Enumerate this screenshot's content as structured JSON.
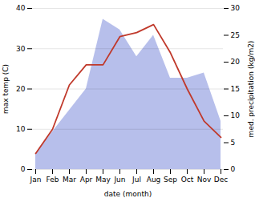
{
  "chart_data": {
    "type": "line",
    "categories": [
      "Jan",
      "Feb",
      "Mar",
      "Apr",
      "May",
      "Jun",
      "Jul",
      "Aug",
      "Sep",
      "Oct",
      "Nov",
      "Dec"
    ],
    "series": [
      {
        "type": "area",
        "color": "#aab4e8",
        "axis": "y2",
        "values": [
          3,
          7,
          11,
          15,
          28,
          26,
          21,
          25,
          17,
          17,
          18,
          9
        ]
      },
      {
        "type": "line",
        "color": "#c0392b",
        "values": [
          4,
          10,
          21,
          26,
          26,
          33,
          34,
          36,
          29,
          20,
          12,
          8
        ]
      }
    ],
    "xlabel": "date (month)",
    "ylabel": "max temp (C)",
    "y2label": "med. precipitation (kg/m2)",
    "ylim": [
      0,
      40
    ],
    "yticks": [
      0,
      10,
      20,
      30,
      40
    ],
    "y2lim": [
      0,
      30
    ],
    "y2ticks": [
      0,
      5,
      10,
      15,
      20,
      25,
      30
    ],
    "grid": true
  }
}
